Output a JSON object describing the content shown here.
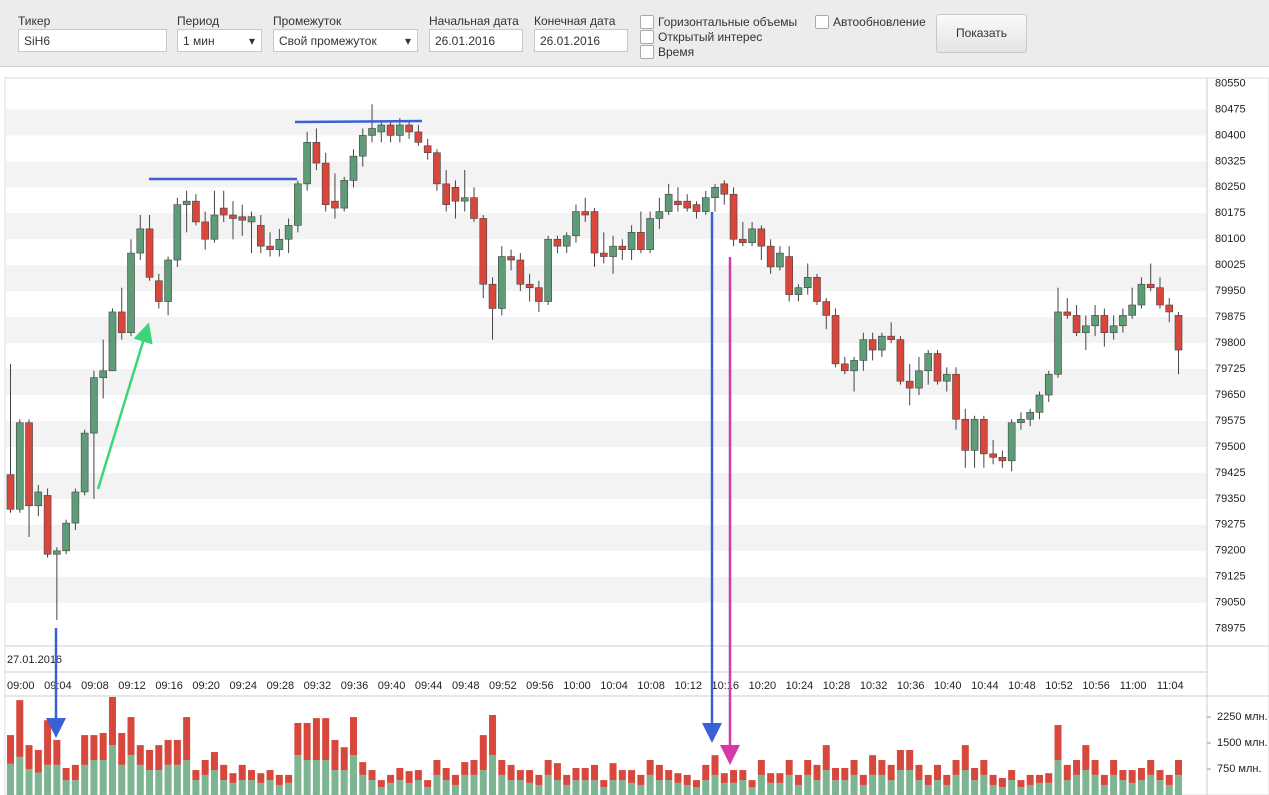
{
  "toolbar": {
    "ticker": {
      "label": "Тикер",
      "value": "SiH6"
    },
    "period": {
      "label": "Период",
      "value": "1 мин"
    },
    "range": {
      "label": "Промежуток",
      "value": "Свой промежуток"
    },
    "start_date": {
      "label": "Начальная дата",
      "value": "26.01.2016"
    },
    "end_date": {
      "label": "Конечная дата",
      "value": "26.01.2016"
    },
    "checkboxes": [
      "Горизонтальные объемы",
      "Открытый интерес",
      "Время",
      "Автообновление"
    ],
    "button": "Показать"
  },
  "chart_data": [
    {
      "type": "candlestick",
      "date_label": "27.01.2016",
      "up_color": "#5e9c78",
      "down_color": "#d8473c",
      "grid": "stripes",
      "categories": [
        null,
        "09:00",
        null,
        null,
        null,
        "09:04",
        null,
        null,
        null,
        "09:08",
        null,
        null,
        null,
        "09:12",
        null,
        null,
        null,
        "09:16",
        null,
        null,
        null,
        "09:20",
        null,
        null,
        null,
        "09:24",
        null,
        null,
        null,
        "09:28",
        null,
        null,
        null,
        "09:32",
        null,
        null,
        null,
        "09:36",
        null,
        null,
        null,
        "09:40",
        null,
        null,
        null,
        "09:44",
        null,
        null,
        null,
        "09:48",
        null,
        null,
        null,
        "09:52",
        null,
        null,
        null,
        "09:56",
        null,
        null,
        null,
        "10:00",
        null,
        null,
        null,
        "10:04",
        null,
        null,
        null,
        "10:08",
        null,
        null,
        null,
        "10:12",
        null,
        null,
        null,
        "10:16",
        null,
        null,
        null,
        "10:20",
        null,
        null,
        null,
        "10:24",
        null,
        null,
        null,
        "10:28",
        null,
        null,
        null,
        "10:32",
        null,
        null,
        null,
        "10:36",
        null,
        null,
        null,
        "10:40",
        null,
        null,
        null,
        "10:44",
        null,
        null,
        null,
        "10:48",
        null,
        null,
        null,
        "10:52",
        null,
        null,
        null,
        "10:56",
        null,
        null,
        null,
        "11:00",
        null,
        null,
        null,
        "11:04",
        null
      ],
      "open": [
        79420,
        79320,
        79570,
        79330,
        79360,
        79190,
        79200,
        79280,
        79370,
        79540,
        79700,
        79720,
        79890,
        79830,
        80060,
        80130,
        79980,
        79920,
        80040,
        80200,
        80210,
        80150,
        80100,
        80190,
        80170,
        80165,
        80150,
        80140,
        80080,
        80070,
        80100,
        80140,
        80260,
        80380,
        80320,
        80210,
        80190,
        80270,
        80340,
        80400,
        80410,
        80430,
        80400,
        80430,
        80410,
        80370,
        80350,
        80260,
        80250,
        80210,
        80220,
        80160,
        79970,
        79900,
        80050,
        80040,
        79970,
        79960,
        79920,
        80100,
        80080,
        80110,
        80180,
        80180,
        80060,
        80050,
        80080,
        80070,
        80120,
        80070,
        80160,
        80180,
        80210,
        80210,
        80200,
        80180,
        80220,
        80260,
        80230,
        80100,
        80090,
        80130,
        80080,
        80020,
        80050,
        79940,
        79960,
        79990,
        79920,
        79880,
        79740,
        79720,
        79750,
        79810,
        79780,
        79820,
        79810,
        79690,
        79670,
        79720,
        79770,
        79690,
        79710,
        79580,
        79490,
        79580,
        79480,
        79470,
        79460,
        79570,
        79580,
        79600,
        79650,
        79710,
        79890,
        79880,
        79830,
        79850,
        79880,
        79830,
        79850,
        79880,
        79910,
        79970,
        79960,
        79910,
        79880
      ],
      "high": [
        79740,
        79580,
        79580,
        79390,
        79380,
        79210,
        79290,
        79380,
        79550,
        79720,
        79810,
        79900,
        79960,
        80100,
        80170,
        80170,
        80000,
        80050,
        80220,
        80240,
        80230,
        80180,
        80240,
        80240,
        80210,
        80200,
        80180,
        80170,
        80120,
        80130,
        80160,
        80270,
        80410,
        80420,
        80350,
        80290,
        80280,
        80360,
        80420,
        80490,
        80440,
        80440,
        80450,
        80440,
        80430,
        80390,
        80360,
        80300,
        80270,
        80300,
        80250,
        80170,
        79990,
        80080,
        80070,
        80060,
        80000,
        79980,
        80110,
        80110,
        80120,
        80200,
        80220,
        80190,
        80120,
        80110,
        80100,
        80140,
        80180,
        80180,
        80220,
        80260,
        80250,
        80230,
        80210,
        80240,
        80260,
        80270,
        80250,
        80150,
        80150,
        80140,
        80100,
        80080,
        80080,
        79970,
        80030,
        80000,
        79930,
        79900,
        79760,
        79760,
        79830,
        79830,
        79830,
        79860,
        79820,
        79740,
        79760,
        79780,
        79780,
        79730,
        79730,
        79610,
        79590,
        79590,
        79520,
        79490,
        79580,
        79600,
        79610,
        79660,
        79720,
        79960,
        79930,
        79910,
        79880,
        79910,
        79900,
        79880,
        79900,
        79960,
        79990,
        80030,
        79990,
        79930,
        79890
      ],
      "low": [
        79310,
        79310,
        79240,
        79300,
        79180,
        79000,
        79190,
        79260,
        79360,
        79350,
        79640,
        79720,
        79810,
        79820,
        80040,
        79980,
        79900,
        79880,
        80020,
        80120,
        80140,
        80070,
        80090,
        80150,
        80100,
        80110,
        80060,
        80060,
        80050,
        80050,
        80060,
        80120,
        80240,
        80300,
        80180,
        80160,
        80180,
        80250,
        80310,
        80380,
        80380,
        80380,
        80380,
        80390,
        80370,
        80330,
        80240,
        80180,
        80160,
        80180,
        80150,
        79930,
        79810,
        79880,
        80010,
        79950,
        79920,
        79890,
        79910,
        80060,
        80060,
        80090,
        80150,
        80020,
        80030,
        80000,
        80040,
        80040,
        80060,
        80060,
        80130,
        80170,
        80180,
        80180,
        80160,
        80170,
        80180,
        80200,
        80080,
        80080,
        80080,
        80040,
        80000,
        80010,
        79920,
        79920,
        79940,
        79910,
        79840,
        79730,
        79710,
        79660,
        79720,
        79750,
        79760,
        79800,
        79680,
        79620,
        79650,
        79680,
        79680,
        79660,
        79550,
        79440,
        79440,
        79440,
        79450,
        79440,
        79430,
        79550,
        79560,
        79580,
        79630,
        79700,
        79870,
        79820,
        79780,
        79820,
        79790,
        79810,
        79830,
        79870,
        79900,
        79950,
        79900,
        79860,
        79710
      ],
      "close": [
        79320,
        79570,
        79330,
        79370,
        79190,
        79200,
        79280,
        79370,
        79540,
        79700,
        79720,
        79890,
        79830,
        80060,
        80130,
        79990,
        79920,
        80040,
        80200,
        80210,
        80150,
        80100,
        80170,
        80170,
        80160,
        80155,
        80165,
        80080,
        80070,
        80100,
        80140,
        80260,
        80380,
        80320,
        80200,
        80190,
        80270,
        80340,
        80400,
        80420,
        80430,
        80400,
        80430,
        80410,
        80380,
        80350,
        80260,
        80200,
        80210,
        80220,
        80160,
        79970,
        79900,
        80050,
        80040,
        79970,
        79960,
        79920,
        80100,
        80080,
        80110,
        80180,
        80170,
        80060,
        80050,
        80080,
        80070,
        80120,
        80070,
        80160,
        80180,
        80230,
        80200,
        80190,
        80180,
        80220,
        80250,
        80230,
        80100,
        80090,
        80130,
        80080,
        80020,
        80060,
        79940,
        79960,
        79990,
        79920,
        79880,
        79740,
        79720,
        79750,
        79810,
        79780,
        79820,
        79810,
        79690,
        79670,
        79720,
        79770,
        79690,
        79710,
        79580,
        79490,
        79580,
        79480,
        79470,
        79460,
        79570,
        79580,
        79600,
        79650,
        79710,
        79890,
        79880,
        79830,
        79850,
        79880,
        79830,
        79850,
        79880,
        79910,
        79970,
        79960,
        79910,
        79890,
        79780
      ],
      "ylim": [
        78925,
        80560
      ],
      "yticks": [
        80550,
        80475,
        80400,
        80325,
        80250,
        80175,
        80100,
        80025,
        79950,
        79875,
        79800,
        79725,
        79650,
        79575,
        79500,
        79425,
        79350,
        79275,
        79200,
        79125,
        79050,
        78975
      ]
    },
    {
      "type": "stacked-bar",
      "ylim": [
        0,
        2830
      ],
      "yticks": [
        {
          "value": 2250,
          "label": "2250 млн."
        },
        {
          "value": 1500,
          "label": "1500 млн."
        },
        {
          "value": 750,
          "label": "750 млн."
        }
      ],
      "series": [
        {
          "color": "#7db592",
          "values": [
            900,
            1100,
            750,
            650,
            870,
            870,
            430,
            430,
            870,
            1010,
            1010,
            1440,
            870,
            1150,
            870,
            720,
            720,
            870,
            870,
            1010,
            430,
            580,
            720,
            430,
            350,
            430,
            430,
            350,
            430,
            290,
            350,
            1150,
            1010,
            1010,
            1010,
            720,
            720,
            1150,
            580,
            430,
            230,
            350,
            430,
            350,
            430,
            230,
            580,
            430,
            290,
            580,
            580,
            720,
            1150,
            580,
            430,
            430,
            350,
            290,
            580,
            430,
            290,
            430,
            430,
            430,
            230,
            430,
            430,
            350,
            290,
            580,
            430,
            430,
            350,
            290,
            230,
            430,
            580,
            350,
            350,
            430,
            230,
            580,
            350,
            350,
            580,
            290,
            580,
            430,
            720,
            430,
            430,
            580,
            290,
            580,
            580,
            430,
            720,
            720,
            430,
            290,
            430,
            290,
            580,
            720,
            430,
            580,
            290,
            230,
            430,
            230,
            290,
            350,
            350,
            1010,
            430,
            580,
            720,
            580,
            290,
            580,
            430,
            350,
            430,
            580,
            430,
            290,
            580
          ]
        },
        {
          "color": "#d8473c",
          "values": [
            830,
            1640,
            690,
            650,
            1290,
            720,
            350,
            440,
            860,
            720,
            780,
            1390,
            920,
            1100,
            570,
            580,
            720,
            720,
            720,
            1240,
            290,
            430,
            520,
            440,
            280,
            440,
            290,
            280,
            290,
            290,
            230,
            930,
            1070,
            1210,
            1210,
            870,
            660,
            1100,
            370,
            290,
            200,
            230,
            350,
            340,
            290,
            200,
            430,
            350,
            290,
            370,
            430,
            1010,
            1160,
            430,
            440,
            290,
            370,
            290,
            430,
            490,
            290,
            350,
            350,
            440,
            200,
            490,
            290,
            370,
            290,
            430,
            440,
            290,
            280,
            290,
            200,
            440,
            570,
            280,
            370,
            290,
            200,
            430,
            280,
            280,
            430,
            290,
            430,
            440,
            720,
            350,
            350,
            430,
            290,
            570,
            430,
            440,
            580,
            580,
            440,
            290,
            440,
            290,
            430,
            720,
            350,
            430,
            290,
            260,
            290,
            200,
            290,
            230,
            280,
            1010,
            440,
            430,
            720,
            430,
            290,
            430,
            290,
            370,
            350,
            430,
            290,
            290,
            430
          ]
        }
      ]
    }
  ]
}
